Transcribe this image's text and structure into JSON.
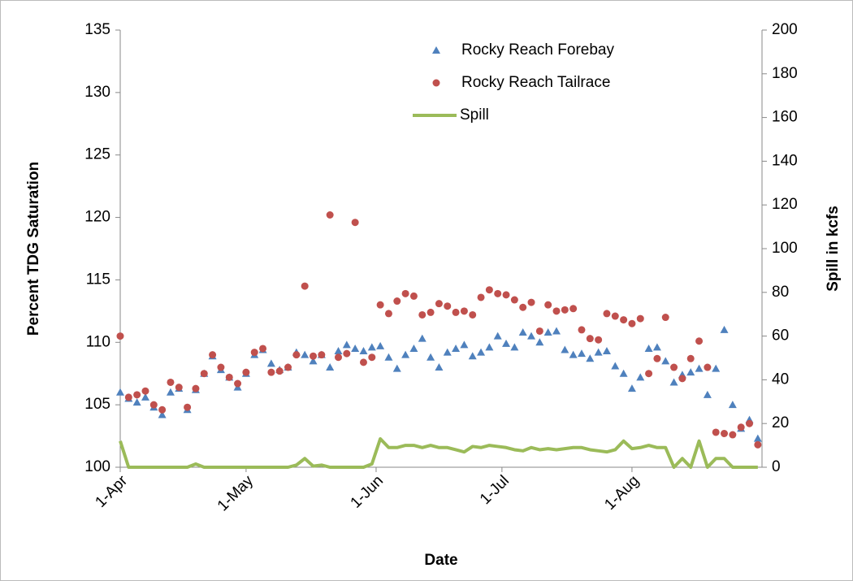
{
  "chart_data": {
    "type": "scatter",
    "xlabel": "Date",
    "ylabel": "Percent TDG Saturation",
    "y2label": "Spill in kcfs",
    "x": [
      0,
      2,
      4,
      6,
      8,
      10,
      12,
      14,
      16,
      18,
      20,
      22,
      24,
      26,
      28,
      30,
      32,
      34,
      36,
      38,
      40,
      42,
      44,
      46,
      48,
      50,
      52,
      54,
      56,
      58,
      60,
      62,
      64,
      66,
      68,
      70,
      72,
      74,
      76,
      78,
      80,
      82,
      84,
      86,
      88,
      90,
      92,
      94,
      96,
      98,
      100,
      102,
      104,
      106,
      108,
      110,
      112,
      114,
      116,
      118,
      120,
      122,
      124,
      126,
      128,
      130,
      132,
      134,
      136,
      138,
      140,
      142,
      144,
      146,
      148,
      150,
      152
    ],
    "xlim": [
      0,
      153
    ],
    "xticks": [
      {
        "value": 0,
        "label": "1-Apr"
      },
      {
        "value": 30,
        "label": "1-May"
      },
      {
        "value": 61,
        "label": "1-Jun"
      },
      {
        "value": 91,
        "label": "1-Jul"
      },
      {
        "value": 122,
        "label": "1-Aug"
      }
    ],
    "ylim": [
      100,
      135
    ],
    "yticks": [
      100,
      105,
      110,
      115,
      120,
      125,
      130,
      135
    ],
    "y2lim": [
      0,
      200
    ],
    "y2ticks": [
      0,
      20,
      40,
      60,
      80,
      100,
      120,
      140,
      160,
      180,
      200
    ],
    "series": [
      {
        "name": "Rocky Reach Forebay",
        "marker": "triangle",
        "color": "#4f81bd",
        "values": [
          106,
          105.5,
          105.2,
          105.6,
          104.8,
          104.2,
          106,
          106.3,
          104.6,
          106.2,
          107.5,
          108.9,
          107.8,
          107.2,
          106.4,
          107.5,
          109,
          109.4,
          108.3,
          107.8,
          108,
          109.2,
          109,
          108.5,
          109,
          108,
          109.3,
          109.8,
          109.5,
          109.3,
          109.6,
          109.7,
          108.8,
          107.9,
          109,
          109.5,
          110.3,
          108.8,
          108,
          109.2,
          109.5,
          109.8,
          108.9,
          109.2,
          109.6,
          110.5,
          109.9,
          109.6,
          110.8,
          110.5,
          110,
          110.8,
          110.9,
          109.4,
          109,
          109.1,
          108.7,
          109.2,
          109.3,
          108.1,
          107.5,
          106.3,
          107.2,
          109.5,
          109.6,
          108.5,
          106.8,
          107.4,
          107.6,
          107.9,
          105.8,
          107.9,
          111,
          105,
          103.1,
          103.8,
          102.3
        ]
      },
      {
        "name": "Rocky Reach Tailrace",
        "marker": "circle",
        "color": "#c0504d",
        "values": [
          110.5,
          105.6,
          105.8,
          106.1,
          105,
          104.6,
          106.8,
          106.4,
          104.8,
          106.3,
          107.5,
          109,
          108,
          107.2,
          106.7,
          107.6,
          109.2,
          109.5,
          107.6,
          107.7,
          108,
          109,
          114.5,
          108.9,
          109,
          120.2,
          108.8,
          109.1,
          119.6,
          108.4,
          108.8,
          113,
          112.3,
          113.3,
          113.9,
          113.7,
          112.2,
          112.4,
          113.1,
          112.9,
          112.4,
          112.5,
          112.2,
          113.6,
          114.2,
          113.9,
          113.8,
          113.4,
          112.8,
          113.2,
          110.9,
          113,
          112.5,
          112.6,
          112.7,
          111,
          110.3,
          110.2,
          112.3,
          112.1,
          111.8,
          111.5,
          111.9,
          107.5,
          108.7,
          112,
          108,
          107.1,
          108.7,
          110.1,
          108,
          102.8,
          102.7,
          102.6,
          103.2,
          103.5,
          101.8
        ]
      },
      {
        "name": "Spill",
        "marker": "line",
        "axis": "y2",
        "color": "#9bbb59",
        "values": [
          12,
          0,
          0,
          0,
          0,
          0,
          0,
          0,
          0,
          1.5,
          0,
          0,
          0,
          0,
          0,
          0,
          0,
          0,
          0,
          0,
          0,
          1,
          4,
          0.5,
          1,
          0,
          0,
          0,
          0,
          0,
          1.5,
          13,
          9,
          9,
          10,
          10,
          9,
          10,
          9,
          9,
          8,
          7,
          9.5,
          9,
          10,
          9.5,
          9,
          8,
          7.5,
          9,
          8,
          8.5,
          8,
          8.5,
          9,
          9,
          8,
          7.5,
          7,
          8,
          12,
          8.5,
          9,
          10,
          9,
          9,
          0,
          4,
          0,
          12,
          0,
          4,
          4,
          0,
          0,
          0,
          0
        ]
      }
    ]
  }
}
